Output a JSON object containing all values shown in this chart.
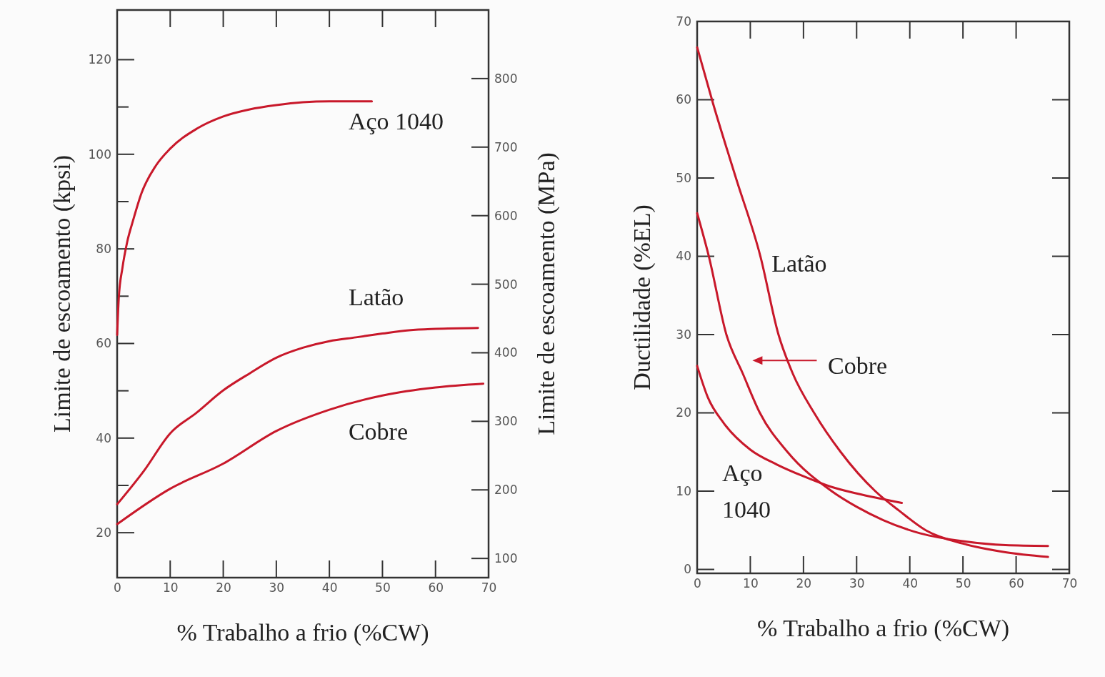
{
  "chart_data": [
    {
      "type": "line",
      "xlabel": "% Trabalho a frio (%CW)",
      "ylabel": "Limite de escoamento (kpsi)",
      "y2label": "Limite de escoamento (MPa)",
      "xlim": [
        0,
        70
      ],
      "xticks": [
        0,
        10,
        20,
        30,
        40,
        50,
        60,
        70
      ],
      "ylim": [
        10.5,
        130.5
      ],
      "yticks": [
        20,
        {
          "value": 30,
          "label": null
        },
        40,
        {
          "value": 50,
          "label": null
        },
        60,
        {
          "value": 70,
          "label": null
        },
        80,
        {
          "value": 90,
          "label": null
        },
        100,
        {
          "value": 110,
          "label": null
        },
        120
      ],
      "y2lim": [
        72,
        900
      ],
      "y2ticks": [
        100,
        200,
        300,
        400,
        500,
        600,
        700,
        800
      ],
      "series": [
        {
          "name": "Aço 1040",
          "color": "#c8182a",
          "x": [
            0,
            0.3,
            1,
            1.9,
            3,
            4.6,
            7.3,
            10,
            15,
            20,
            25,
            30,
            35,
            40,
            48
          ],
          "values": [
            61.8,
            69.5,
            76,
            81.5,
            86,
            91.8,
            97.6,
            101.2,
            105.4,
            108,
            109.5,
            110.4,
            111,
            111.2,
            111.2
          ]
        },
        {
          "name": "Latão",
          "color": "#c8182a",
          "x": [
            0,
            5,
            10,
            15,
            20,
            25,
            30,
            35,
            40,
            45,
            50,
            55,
            60,
            68
          ],
          "values": [
            26,
            33,
            41,
            45.4,
            50.1,
            53.7,
            57,
            59.1,
            60.5,
            61.3,
            62.1,
            62.8,
            63.1,
            63.3
          ]
        },
        {
          "name": "Cobre",
          "color": "#c8182a",
          "x": [
            0,
            10,
            20,
            30,
            40,
            50,
            60,
            69
          ],
          "values": [
            21.8,
            29.3,
            34.6,
            41.5,
            46,
            49,
            50.7,
            51.5
          ]
        }
      ]
    },
    {
      "type": "line",
      "xlabel": "% Trabalho a frio (%CW)",
      "ylabel": "Ductilidade (%EL)",
      "xlim": [
        0,
        70
      ],
      "xticks": [
        0,
        10,
        20,
        30,
        40,
        50,
        60,
        70
      ],
      "ylim": [
        -0.5,
        70
      ],
      "yticks": [
        0,
        10,
        20,
        30,
        40,
        50,
        60,
        70
      ],
      "series": [
        {
          "name": "Latão",
          "color": "#c8182a",
          "x": [
            0,
            3,
            7.3,
            11.9,
            15.3,
            18,
            22,
            27,
            33.5,
            38,
            43,
            50,
            58,
            66
          ],
          "values": [
            66.7,
            59.5,
            50,
            40,
            30,
            25,
            20,
            15,
            10,
            7.5,
            5,
            3.3,
            2.2,
            1.6
          ]
        },
        {
          "name": "Cobre",
          "color": "#c8182a",
          "x": [
            0,
            2.2,
            5.5,
            8.6,
            11.8,
            17,
            25.3,
            30,
            35,
            42,
            50,
            58,
            66
          ],
          "values": [
            45.5,
            40,
            30,
            25,
            20,
            15,
            10,
            8,
            6.3,
            4.6,
            3.6,
            3.1,
            3
          ]
        },
        {
          "name": "Aço 1040",
          "color": "#c8182a",
          "x": [
            0,
            2,
            5,
            10,
            15,
            20,
            25,
            30,
            38.5
          ],
          "values": [
            26,
            22,
            18.7,
            15.3,
            13.4,
            11.9,
            10.6,
            9.7,
            8.5
          ]
        }
      ]
    }
  ]
}
